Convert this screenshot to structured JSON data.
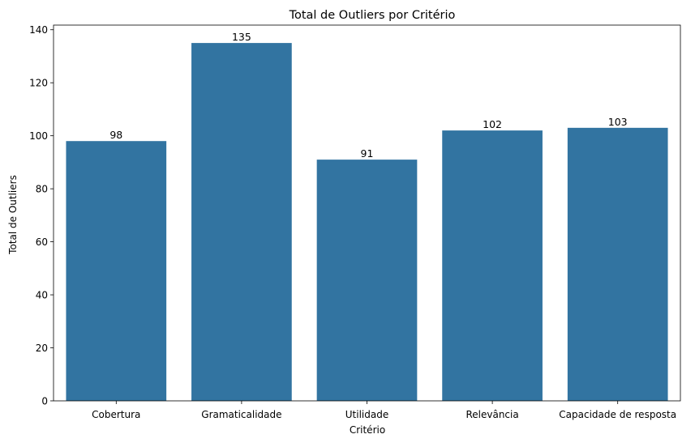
{
  "chart_data": {
    "type": "bar",
    "title": "Total de Outliers por Critério",
    "xlabel": "Critério",
    "ylabel": "Total de Outliers",
    "categories": [
      "Cobertura",
      "Gramaticalidade",
      "Utilidade",
      "Relevância",
      "Capacidade de resposta"
    ],
    "values": [
      98,
      135,
      91,
      102,
      103
    ],
    "data_labels": [
      "98",
      "135",
      "91",
      "102",
      "103"
    ],
    "ylim": [
      0,
      141.75
    ],
    "yticks": [
      0,
      20,
      40,
      60,
      80,
      100,
      120,
      140
    ],
    "grid": false,
    "legend": "none",
    "bar_color": "#3274a1"
  }
}
